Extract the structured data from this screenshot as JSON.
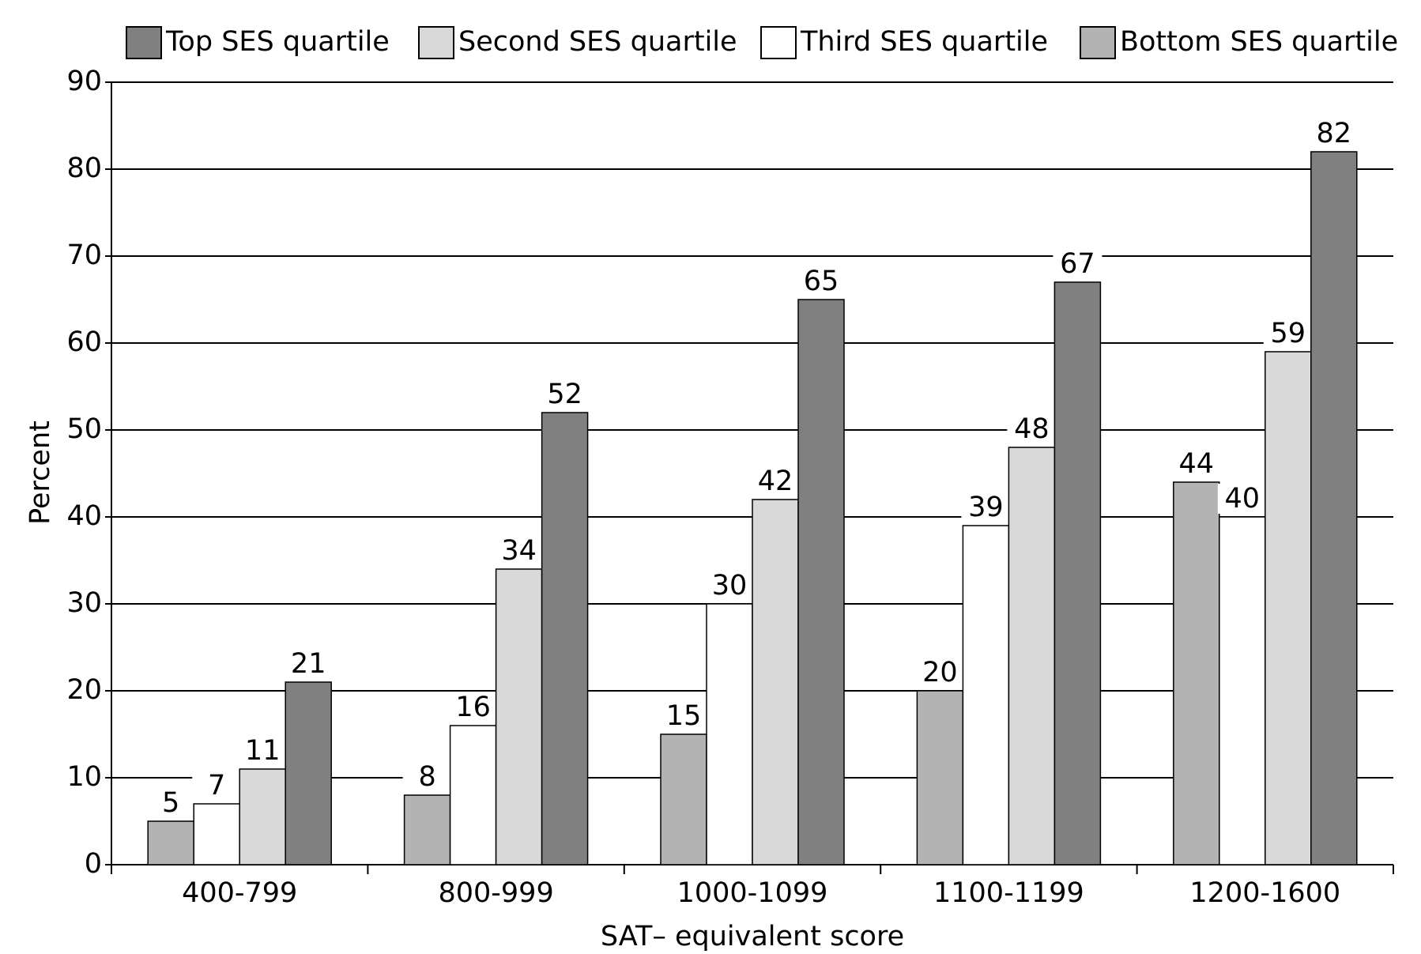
{
  "chart_data": {
    "type": "bar",
    "x_label": "SAT– equivalent score",
    "y_label": "Percent",
    "categories": [
      "400-799",
      "800-999",
      "1000-1099",
      "1100-1199",
      "1200-1600"
    ],
    "series": [
      {
        "name": "Bottom SES quartile",
        "color": "#b3b3b3",
        "values": [
          5,
          8,
          15,
          20,
          44
        ]
      },
      {
        "name": "Third SES quartile",
        "color": "#ffffff",
        "values": [
          7,
          16,
          30,
          39,
          40
        ]
      },
      {
        "name": "Second SES quartile",
        "color": "#d9d9d9",
        "values": [
          11,
          34,
          42,
          48,
          59
        ]
      },
      {
        "name": "Top SES quartile",
        "color": "#808080",
        "values": [
          21,
          52,
          65,
          67,
          82
        ]
      }
    ],
    "ylim": [
      0,
      90
    ],
    "yticks": [
      0,
      10,
      20,
      30,
      40,
      50,
      60,
      70,
      80,
      90
    ],
    "grid": true
  }
}
